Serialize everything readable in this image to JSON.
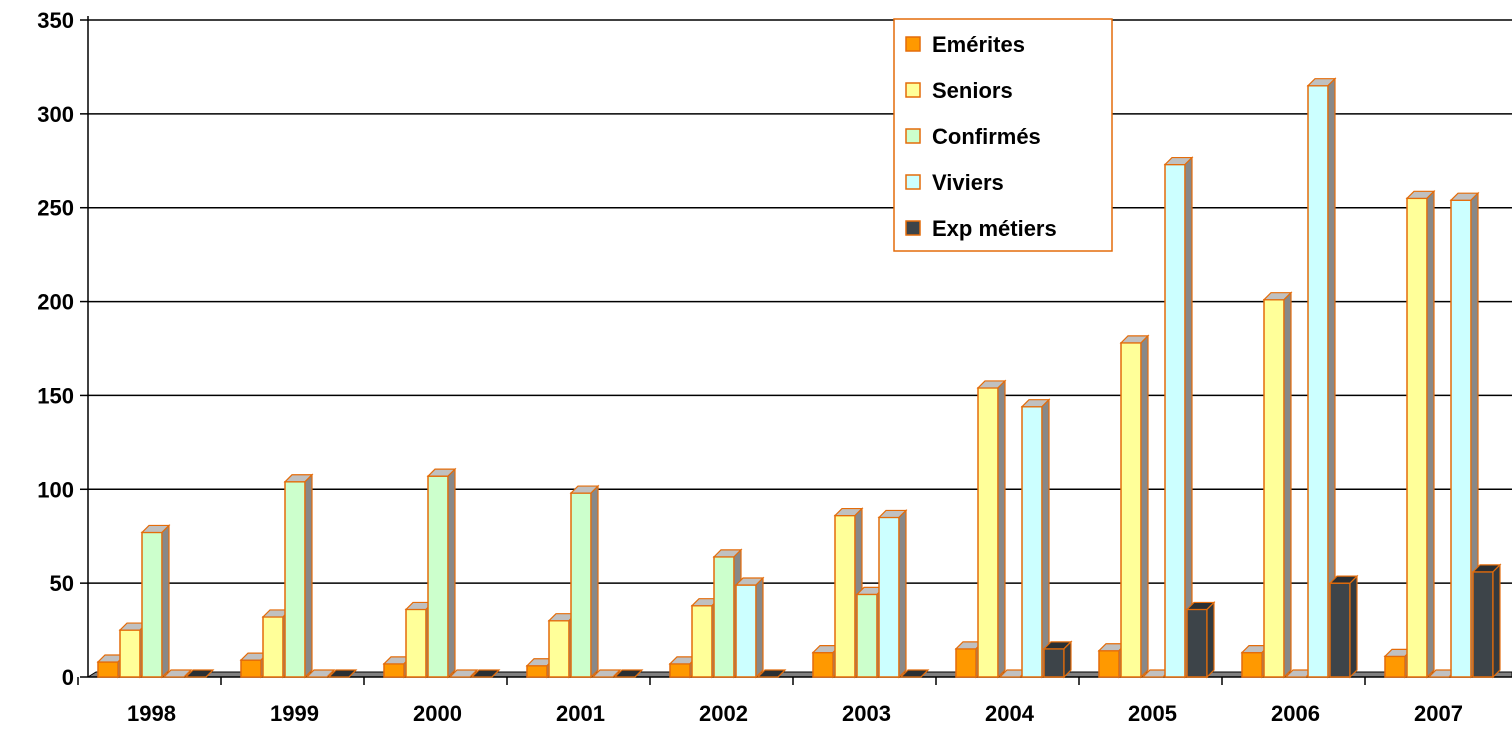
{
  "chart_data": {
    "type": "bar",
    "categories": [
      "1998",
      "1999",
      "2000",
      "2001",
      "2002",
      "2003",
      "2004",
      "2005",
      "2006",
      "2007"
    ],
    "series": [
      {
        "name": "Emérites",
        "color": "#FF9900",
        "values": [
          8,
          9,
          7,
          6,
          7,
          13,
          15,
          14,
          13,
          11
        ]
      },
      {
        "name": "Seniors",
        "color": "#FFFF99",
        "values": [
          25,
          32,
          36,
          30,
          38,
          86,
          154,
          178,
          201,
          255
        ]
      },
      {
        "name": "Confirmés",
        "color": "#CCFFCC",
        "values": [
          77,
          104,
          107,
          98,
          64,
          44,
          0,
          0,
          0,
          0
        ]
      },
      {
        "name": "Viviers",
        "color": "#CCFFFF",
        "values": [
          0,
          0,
          0,
          0,
          49,
          85,
          144,
          273,
          315,
          254
        ]
      },
      {
        "name": "Exp métiers",
        "color": "#3D4449",
        "values": [
          0,
          0,
          0,
          0,
          0,
          0,
          15,
          36,
          50,
          56
        ]
      }
    ],
    "ylim": [
      0,
      350
    ],
    "yticks": [
      "0",
      "50",
      "100",
      "150",
      "200",
      "250",
      "300",
      "350"
    ],
    "grid": true,
    "legend_position": "top-right",
    "xlabel": "",
    "ylabel": ""
  }
}
